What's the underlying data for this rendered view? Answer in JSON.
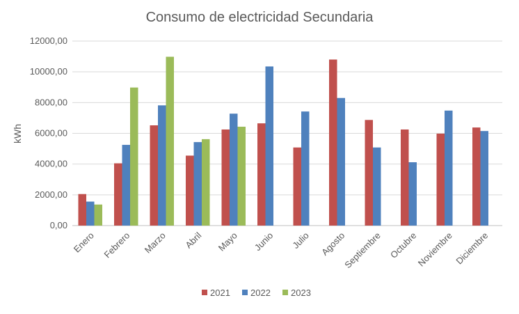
{
  "chart_data": {
    "type": "bar",
    "title": "Consumo de electricidad Secundaria",
    "xlabel": "",
    "ylabel": "kWh",
    "ylim": [
      0,
      12000
    ],
    "yticks": [
      0,
      2000,
      4000,
      6000,
      8000,
      10000,
      12000
    ],
    "ytick_labels": [
      "0,00",
      "2000,00",
      "4000,00",
      "6000,00",
      "8000,00",
      "10000,00",
      "12000,00"
    ],
    "grid": true,
    "legend_position": "bottom",
    "categories": [
      "Enero",
      "Febrero",
      "Marzo",
      "Abril",
      "Mayo",
      "Junio",
      "Julio",
      "Agosto",
      "Septiembre",
      "Octubre",
      "Noviembre",
      "Diciembre"
    ],
    "series": [
      {
        "name": "2021",
        "color": "#C0504D",
        "values": [
          2050,
          4050,
          6520,
          4550,
          6250,
          6650,
          5080,
          10800,
          6870,
          6250,
          5980,
          6380
        ]
      },
      {
        "name": "2022",
        "color": "#4F81BD",
        "values": [
          1560,
          5250,
          7820,
          5430,
          7280,
          10350,
          7420,
          8300,
          5080,
          4120,
          7480,
          6150
        ]
      },
      {
        "name": "2023",
        "color": "#9BBB59",
        "values": [
          1370,
          8980,
          10980,
          5620,
          6430,
          null,
          null,
          null,
          null,
          null,
          null,
          null
        ]
      }
    ]
  }
}
